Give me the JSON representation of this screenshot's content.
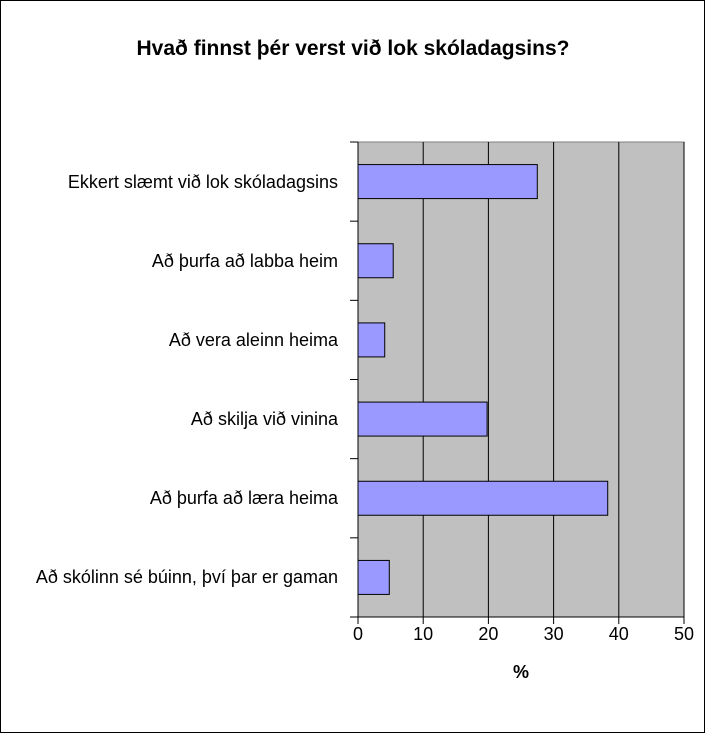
{
  "chart_data": {
    "type": "bar",
    "orientation": "horizontal",
    "title": "Hvað finnst þér verst við lok skóladagsins?",
    "x_label": "%",
    "categories": [
      "Ekkert slæmt við lok skóladagsins",
      "Að þurfa að labba heim",
      "Að vera aleinn heima",
      "Að skilja við vinina",
      "Að þurfa að læra heima",
      "Að skólinn sé búinn, því þar er gaman"
    ],
    "values": [
      27.5,
      5.4,
      4.1,
      19.8,
      38.3,
      4.8
    ],
    "color": "#9999ff",
    "xlim": [
      0,
      50
    ],
    "xticks": [
      0,
      10,
      20,
      30,
      40,
      50
    ],
    "grid": true
  }
}
